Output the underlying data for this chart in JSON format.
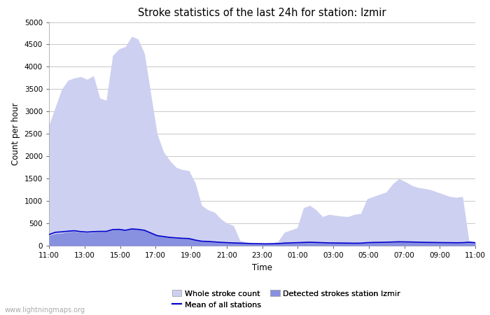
{
  "title": "Stroke statistics of the last 24h for station: Izmir",
  "xlabel": "Time",
  "ylabel": "Count per hour",
  "watermark": "www.lightningmaps.org",
  "x_ticks": [
    "11:00",
    "13:00",
    "15:00",
    "17:00",
    "19:00",
    "21:00",
    "23:00",
    "01:00",
    "03:00",
    "05:00",
    "07:00",
    "09:00",
    "11:00"
  ],
  "ylim": [
    0,
    5000
  ],
  "yticks": [
    0,
    500,
    1000,
    1500,
    2000,
    2500,
    3000,
    3500,
    4000,
    4500,
    5000
  ],
  "whole_stroke_color": "#cdd0f0",
  "detected_stroke_color": "#8890e0",
  "mean_line_color": "#0000cc",
  "whole_stroke_data": [
    2700,
    3100,
    3500,
    3700,
    3750,
    3780,
    3720,
    3800,
    3300,
    3250,
    4250,
    4400,
    4450,
    4680,
    4620,
    4300,
    3400,
    2500,
    2100,
    1900,
    1750,
    1700,
    1680,
    1400,
    900,
    800,
    750,
    600,
    500,
    450,
    120,
    80,
    60,
    55,
    50,
    55,
    100,
    300,
    350,
    400,
    850,
    900,
    800,
    650,
    700,
    680,
    660,
    650,
    700,
    720,
    1050,
    1100,
    1150,
    1200,
    1380,
    1500,
    1430,
    1350,
    1300,
    1280,
    1250,
    1200,
    1150,
    1100,
    1080,
    1100,
    110,
    80
  ],
  "detected_stroke_data": [
    230,
    270,
    280,
    310,
    320,
    300,
    290,
    300,
    310,
    315,
    350,
    360,
    340,
    370,
    360,
    340,
    280,
    220,
    200,
    180,
    170,
    160,
    155,
    120,
    95,
    90,
    80,
    70,
    65,
    60,
    55,
    50,
    45,
    42,
    40,
    42,
    45,
    55,
    60,
    65,
    70,
    75,
    70,
    65,
    60,
    58,
    56,
    55,
    52,
    54,
    65,
    70,
    72,
    75,
    80,
    85,
    82,
    80,
    75,
    72,
    70,
    68,
    66,
    65,
    63,
    65,
    75,
    65
  ],
  "mean_line_data": [
    250,
    300,
    310,
    325,
    335,
    315,
    305,
    315,
    320,
    320,
    360,
    365,
    345,
    375,
    365,
    345,
    285,
    225,
    205,
    185,
    175,
    165,
    160,
    125,
    100,
    95,
    85,
    75,
    68,
    62,
    58,
    52,
    47,
    45,
    42,
    44,
    47,
    58,
    63,
    68,
    73,
    78,
    73,
    68,
    63,
    61,
    59,
    58,
    55,
    57,
    68,
    73,
    75,
    78,
    83,
    88,
    85,
    83,
    78,
    75,
    73,
    71,
    69,
    68,
    66,
    68,
    78,
    68
  ]
}
